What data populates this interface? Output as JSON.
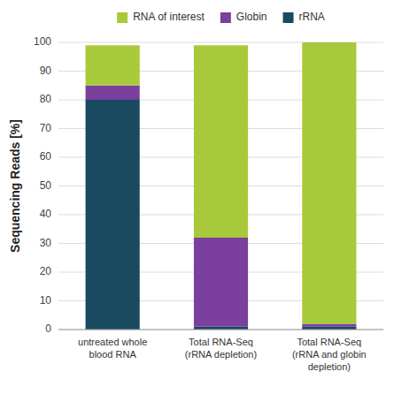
{
  "chart_data": {
    "type": "bar",
    "stacked": true,
    "categories": [
      "untreated whole\nblood RNA",
      "Total RNA-Seq\n(rRNA depletion)",
      "Total RNA-Seq\n(rRNA and globin\ndepletion)"
    ],
    "series": [
      {
        "name": "rRNA",
        "color": "#1a4a60",
        "values": [
          80,
          1,
          1
        ]
      },
      {
        "name": "Globin",
        "color": "#7b3f9e",
        "values": [
          5,
          31,
          1
        ]
      },
      {
        "name": "RNA of interest",
        "color": "#a8c93a",
        "values": [
          14,
          67,
          98
        ]
      }
    ],
    "y_label": "Sequencing Reads [%]",
    "ylim": [
      0,
      100
    ],
    "yticks": [
      0,
      10,
      20,
      30,
      40,
      50,
      60,
      70,
      80,
      90,
      100
    ],
    "grid": true,
    "legend": "top"
  }
}
